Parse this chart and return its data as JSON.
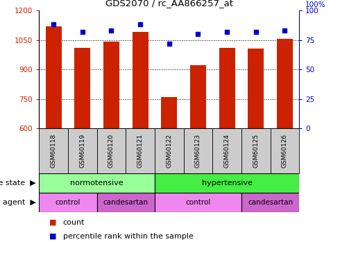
{
  "title": "GDS2070 / rc_AA866257_at",
  "samples": [
    "GSM60118",
    "GSM60119",
    "GSM60120",
    "GSM60121",
    "GSM60122",
    "GSM60123",
    "GSM60124",
    "GSM60125",
    "GSM60126"
  ],
  "bar_values": [
    1120,
    1010,
    1040,
    1090,
    760,
    920,
    1010,
    1005,
    1055
  ],
  "percentile_values": [
    88,
    82,
    83,
    88,
    72,
    80,
    82,
    82,
    83
  ],
  "ylim_left": [
    600,
    1200
  ],
  "ylim_right": [
    0,
    100
  ],
  "yticks_left": [
    600,
    750,
    900,
    1050,
    1200
  ],
  "yticks_right": [
    0,
    25,
    50,
    75,
    100
  ],
  "bar_color": "#cc2200",
  "percentile_color": "#0000cc",
  "normotensive_color": "#99ff99",
  "hypertensive_color": "#44ee44",
  "control_color": "#ee88ee",
  "candesartan_color": "#cc66cc",
  "sample_box_color": "#cccccc",
  "legend_count_color": "#cc2200",
  "legend_percentile_color": "#0000cc",
  "agent_segments": [
    [
      0,
      2,
      "control"
    ],
    [
      2,
      4,
      "candesartan"
    ],
    [
      4,
      7,
      "control"
    ],
    [
      7,
      9,
      "candesartan"
    ]
  ]
}
